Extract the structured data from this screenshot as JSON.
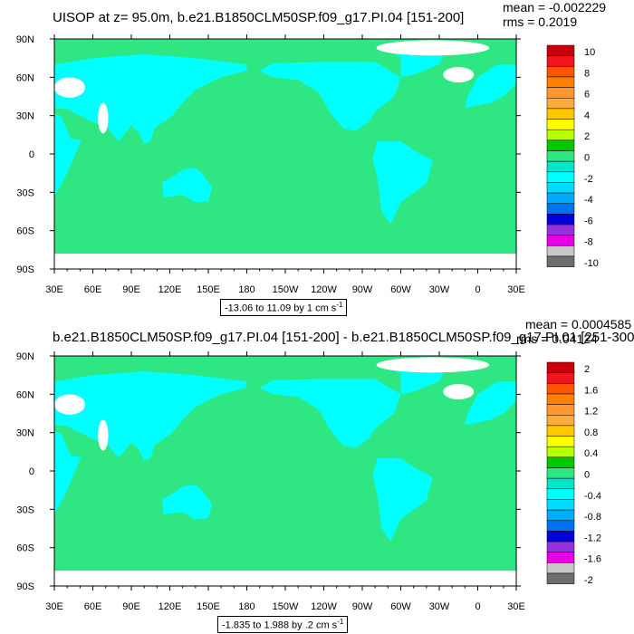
{
  "chart_data": [
    {
      "type": "heatmap",
      "title": "UISOP at z=  95.0m, b.e21.B1850CLM50SP.f09_g17.PI.04 [151-200]",
      "mean_text": "mean = -0.002229",
      "rms_text": "rms = 0.2019",
      "x_tick_labels": [
        "30E",
        "60E",
        "90E",
        "120E",
        "150E",
        "180",
        "150W",
        "120W",
        "90W",
        "60W",
        "30W",
        "0",
        "30E"
      ],
      "y_tick_labels": [
        "90N",
        "60N",
        "30N",
        "0",
        "30S",
        "60S",
        "90S"
      ],
      "xlim": [
        30,
        390
      ],
      "ylim": [
        -90,
        90
      ],
      "colorbar_labels": [
        "10",
        "8",
        "6",
        "4",
        "2",
        "0",
        "-2",
        "-4",
        "-6",
        "-8",
        "-10"
      ],
      "colorbar_levels": [
        -10,
        -9,
        -8,
        -7,
        -6,
        -5,
        -4,
        -3,
        -2,
        -1,
        0,
        1,
        2,
        3,
        4,
        5,
        6,
        7,
        8,
        9,
        10
      ],
      "range_text": "-13.06 to 11.09 by 1 cm s",
      "range_unit_exp": "-1",
      "field_min": -13.06,
      "field_max": 11.09,
      "field_mean": -0.002229,
      "field_rms": 0.2019
    },
    {
      "type": "heatmap",
      "title": "b.e21.B1850CLM50SP.f09_g17.PI.04 [151-200] - b.e21.B1850CLM50SP.f09_g17.PI.01 [251-300]",
      "mean_text": "mean = 0.0004585",
      "rms_text": "rms = 0.04124",
      "x_tick_labels": [
        "30E",
        "60E",
        "90E",
        "120E",
        "150E",
        "180",
        "150W",
        "120W",
        "90W",
        "60W",
        "30W",
        "0",
        "30E"
      ],
      "y_tick_labels": [
        "90N",
        "60N",
        "30N",
        "0",
        "30S",
        "60S",
        "90S"
      ],
      "xlim": [
        30,
        390
      ],
      "ylim": [
        -90,
        90
      ],
      "colorbar_labels": [
        "2",
        "1.6",
        "1.2",
        "0.8",
        "0.4",
        "0",
        "-0.4",
        "-0.8",
        "-1.2",
        "-1.6",
        "-2"
      ],
      "colorbar_levels": [
        -2,
        -1.8,
        -1.6,
        -1.4,
        -1.2,
        -1,
        -0.8,
        -0.6,
        -0.4,
        -0.2,
        0,
        0.2,
        0.4,
        0.6,
        0.8,
        1,
        1.2,
        1.4,
        1.6,
        1.8,
        2
      ],
      "range_text": "-1.835 to 1.988 by .2 cm s",
      "range_unit_exp": "-1",
      "field_min": -1.835,
      "field_max": 1.988,
      "field_mean": 0.0004585,
      "field_rms": 0.04124
    }
  ],
  "colors": {
    "palette": [
      "#c8000a",
      "#f0141e",
      "#ff5500",
      "#ff7f00",
      "#ff9632",
      "#ffaa3c",
      "#ffc800",
      "#ffff00",
      "#b4ff00",
      "#00c800",
      "#2ee682",
      "#00e6c8",
      "#00ffff",
      "#00dcff",
      "#00aaff",
      "#0072f0",
      "#0000dc",
      "#9632dc",
      "#e600e6",
      "#c8c8c8",
      "#6e6e6e"
    ],
    "field_green": "#2ee682",
    "field_cyan": "#00ffff",
    "land_white": "#ffffff",
    "nodata_white": "#ffffff"
  }
}
